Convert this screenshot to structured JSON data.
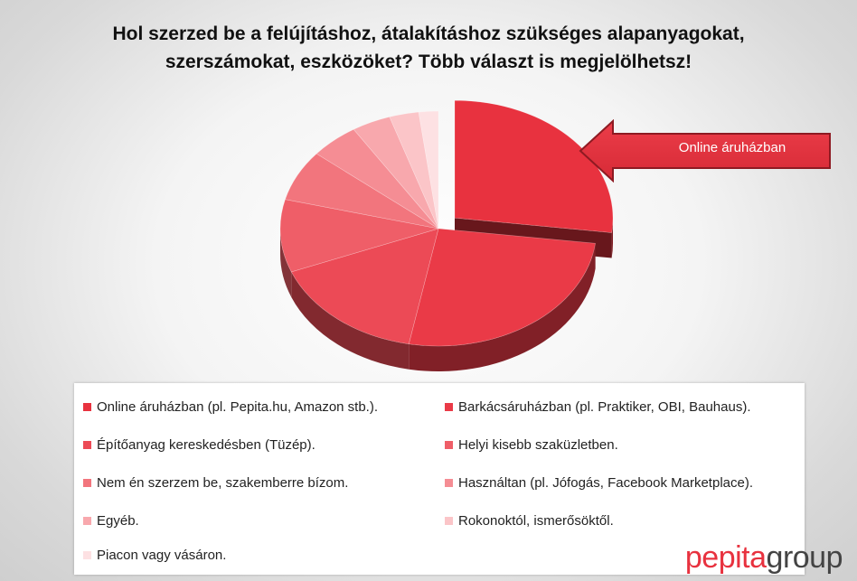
{
  "title_lines": [
    "Hol szerzed be a felújításhoz, átalakításhoz szükséges alapanyagokat,",
    "szerszámokat, eszközöket? Több választ is megjelölhetsz!"
  ],
  "callout": {
    "label": "Online áruházban",
    "color": "#e8323f"
  },
  "logo": {
    "part1": "pepita",
    "part2": "group"
  },
  "chart_data": {
    "type": "pie",
    "title": "Hol szerzed be a felújításhoz, átalakításhoz szükséges alapanyagokat, szerszámokat, eszközöket? Több választ is megjelölhetsz!",
    "exploded_slice": 0,
    "legend_placement": "bottom",
    "series": [
      {
        "name": "Online áruházban (pl. Pepita.hu, Amazon stb.).",
        "value": 27,
        "color": "#e8323f"
      },
      {
        "name": "Barkácsáruházban (pl. Praktiker, OBI, Bauhaus).",
        "value": 26,
        "color": "#ea3a47"
      },
      {
        "name": "Építőanyag kereskedésben (Tüzép).",
        "value": 16,
        "color": "#ec4a56"
      },
      {
        "name": "Helyi kisebb szaküzletben.",
        "value": 10,
        "color": "#ef5e68"
      },
      {
        "name": "Nem én szerzem be, szakemberre bízom.",
        "value": 7,
        "color": "#f2757d"
      },
      {
        "name": "Használtan (pl. Jófogás, Facebook Marketplace).",
        "value": 5,
        "color": "#f58d94"
      },
      {
        "name": "Egyéb.",
        "value": 4,
        "color": "#f8a8ad"
      },
      {
        "name": "Rokonoktól, ismerősöktől.",
        "value": 3,
        "color": "#fbc5c8"
      },
      {
        "name": "Piacon vagy vásáron.",
        "value": 2,
        "color": "#fde1e3"
      }
    ]
  }
}
